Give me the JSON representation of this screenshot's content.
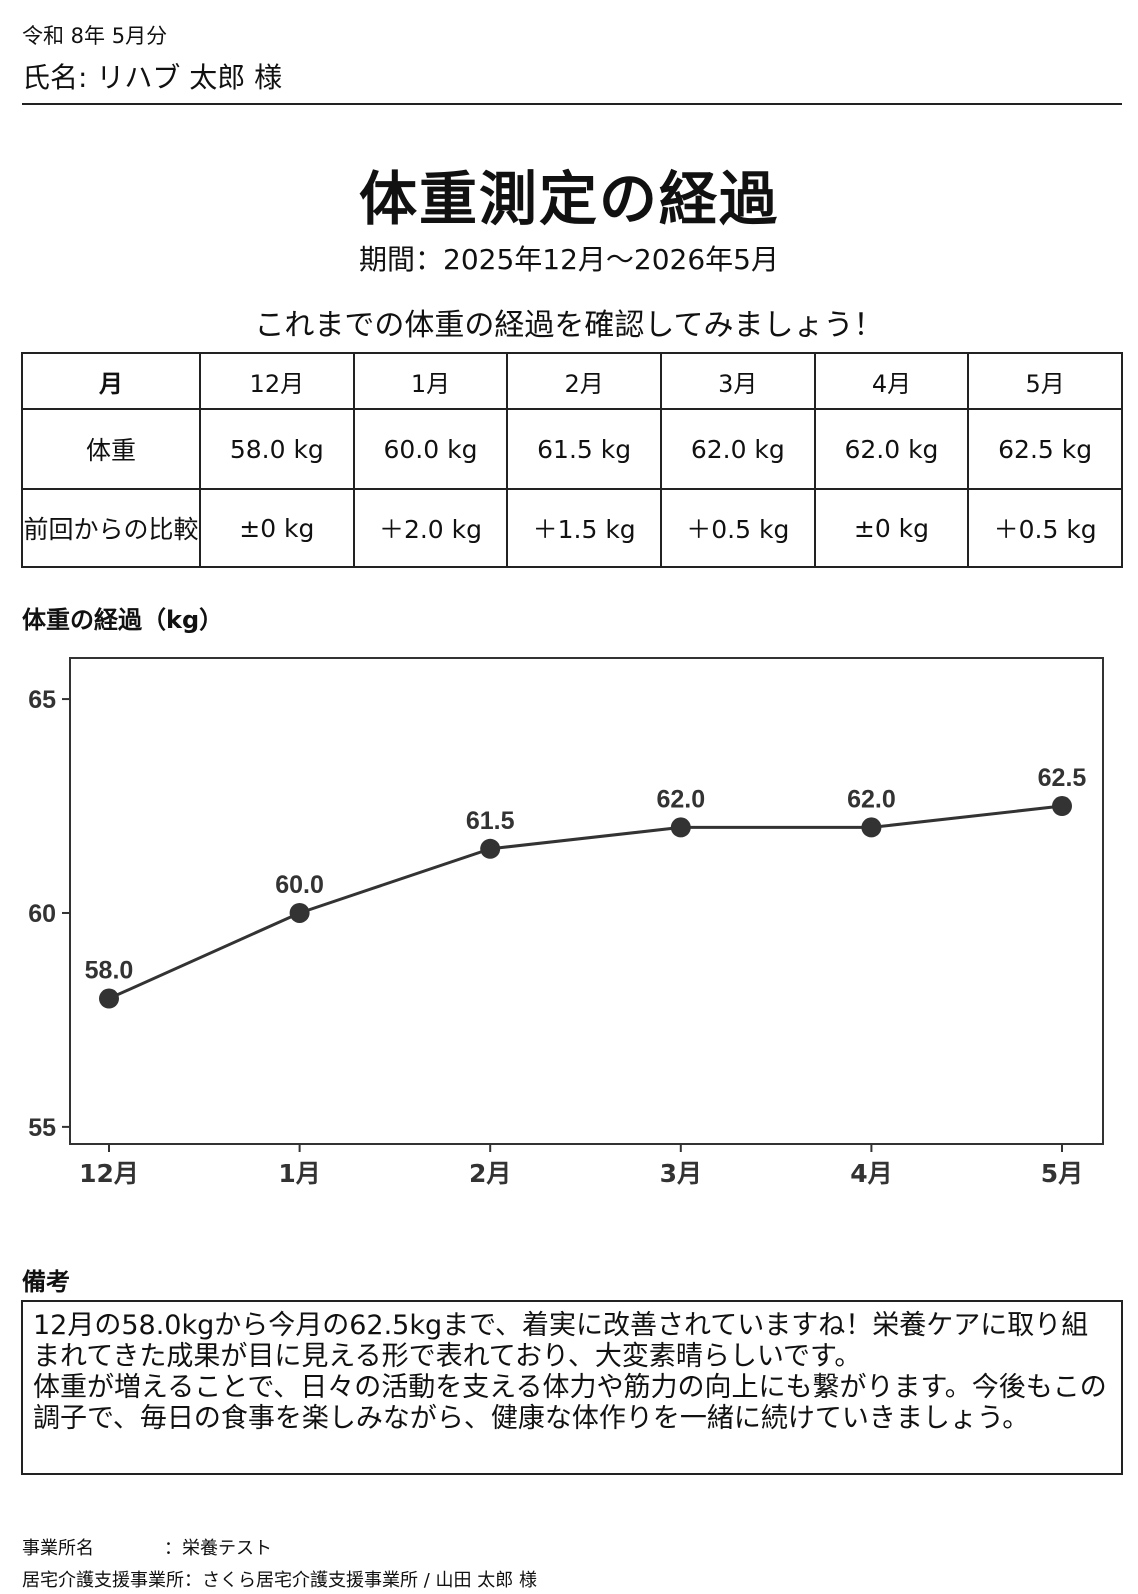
{
  "header": {
    "period": "令和 8年 5月分",
    "name": "氏名: リハブ 太郎 様"
  },
  "title": "体重測定の経過",
  "period_line": "期間：2025年12月～2026年5月",
  "lead": "これまでの体重の経過を確認してみましょう！",
  "table": {
    "head_label": "月",
    "months": [
      "12月",
      "1月",
      "2月",
      "3月",
      "4月",
      "5月"
    ],
    "weight_label": "体重",
    "weights": [
      "58.0 kg",
      "60.0 kg",
      "61.5 kg",
      "62.0 kg",
      "62.0 kg",
      "62.5 kg"
    ],
    "diff_label": "前回からの比較",
    "diffs": [
      "±0 kg",
      "＋2.0 kg",
      "＋1.5 kg",
      "＋0.5 kg",
      "±0 kg",
      "＋0.5 kg"
    ]
  },
  "chart_title": "体重の経過（kg）",
  "chart_data": {
    "type": "line",
    "categories": [
      "12月",
      "1月",
      "2月",
      "3月",
      "4月",
      "5月"
    ],
    "values": [
      58.0,
      60.0,
      61.5,
      62.0,
      62.0,
      62.5
    ],
    "data_labels": [
      "58.0",
      "60.0",
      "61.5",
      "62.0",
      "62.0",
      "62.5"
    ],
    "yticks": [
      55,
      60,
      65
    ],
    "ylim": [
      54.6,
      65.96
    ],
    "grid": false,
    "color": "#333333"
  },
  "remarks": {
    "label": "備考",
    "lines": [
      "12月の58.0kgから今月の62.5kgまで、着実に改善されていますね！栄養ケアに取り組まれてきた成果が目に見える形で表れており、大変素晴らしいです。",
      "体重が増えることで、日々の活動を支える体力や筋力の向上にも繋がります。今後もこの調子で、毎日の食事を楽しみながら、健康な体作りを一緒に続けていきましょう。"
    ]
  },
  "footer": {
    "office_key": "事業所名",
    "office_value": "：栄養テスト",
    "care_key": "居宅介護支援事業所",
    "care_value": "：さくら居宅介護支援事業所 / 山田 太郎 様"
  }
}
